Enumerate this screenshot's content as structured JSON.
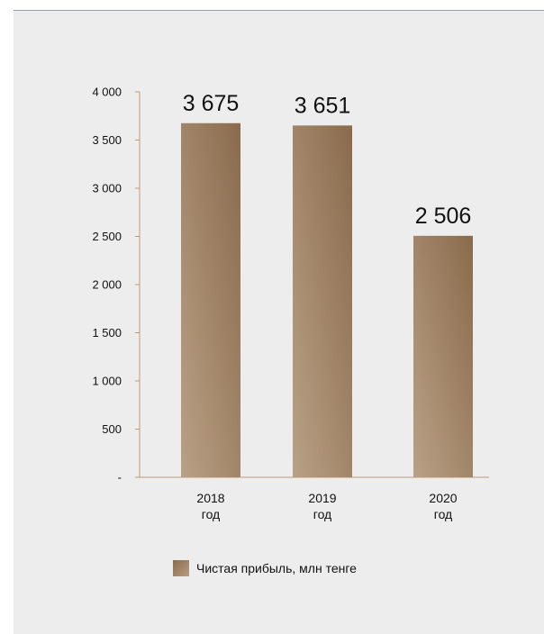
{
  "chart_data": {
    "type": "bar",
    "categories": [
      "2018\nгод",
      "2019\nгод",
      "2020\nгод"
    ],
    "values": [
      3675,
      3651,
      2506
    ],
    "value_labels": [
      "3 675",
      "3 651",
      "2 506"
    ],
    "series": [
      {
        "name": "Чистая прибыль, млн тенге",
        "values": [
          3675,
          3651,
          2506
        ]
      }
    ],
    "y_ticks": [
      {
        "value": 0,
        "label": "-"
      },
      {
        "value": 500,
        "label": "500"
      },
      {
        "value": 1000,
        "label": "1 000"
      },
      {
        "value": 1500,
        "label": "1 500"
      },
      {
        "value": 2000,
        "label": "2 000"
      },
      {
        "value": 2500,
        "label": "2 500"
      },
      {
        "value": 3000,
        "label": "3 000"
      },
      {
        "value": 3500,
        "label": "3 500"
      },
      {
        "value": 4000,
        "label": "4 000"
      }
    ],
    "ylim": [
      0,
      4000
    ],
    "title": "",
    "xlabel": "",
    "ylabel": "",
    "grid": false,
    "legend": "bottom",
    "colors": {
      "bar_dark": "#8a6a4c",
      "bar_light": "#b8a084",
      "axis": "#c09a78"
    }
  },
  "legend": {
    "label": "Чистая прибыль, млн тенге"
  }
}
